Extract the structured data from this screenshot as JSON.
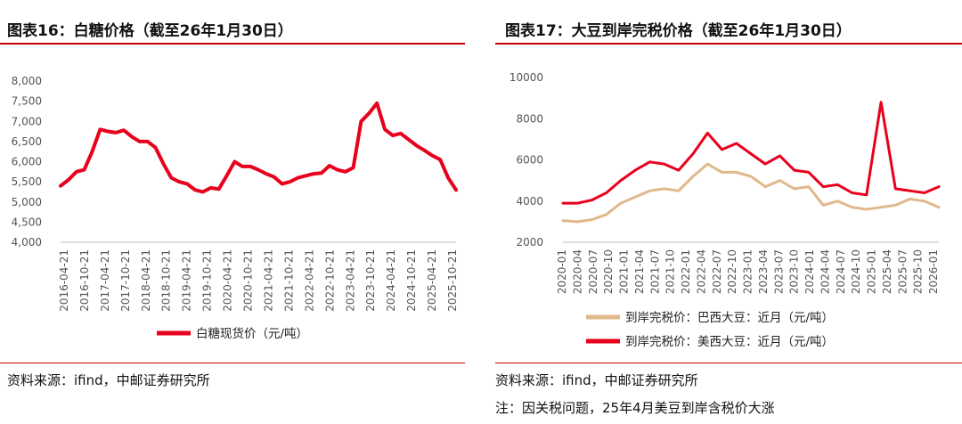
{
  "left": {
    "title": "图表16：白糖价格（截至26年1月30日）",
    "source": "资料来源：ifind，中邮证券研究所",
    "chart_data": {
      "type": "line",
      "title": "",
      "xlabel": "",
      "ylabel": "",
      "ylim": [
        4000,
        8000
      ],
      "yticks": [
        "8,000",
        "7,500",
        "7,000",
        "6,500",
        "6,000",
        "5,500",
        "5,000",
        "4,500",
        "4,000"
      ],
      "xticks": [
        "2016-04-21",
        "2016-10-21",
        "2017-04-21",
        "2017-10-21",
        "2018-04-21",
        "2018-10-21",
        "2019-04-21",
        "2019-10-21",
        "2020-04-21",
        "2020-10-21",
        "2021-04-21",
        "2021-10-21",
        "2022-04-21",
        "2022-10-21",
        "2023-04-21",
        "2023-10-21",
        "2024-04-21",
        "2024-10-21",
        "2025-04-21",
        "2025-10-21"
      ],
      "legend_position": "bottom",
      "grid": false,
      "series": [
        {
          "name": "白糖现货价（元/吨）",
          "color": "#e8001c",
          "x_start": "2016-01",
          "x_end": "2026-01",
          "values": [
            5400,
            5550,
            5750,
            5800,
            6250,
            6800,
            6750,
            6720,
            6780,
            6620,
            6500,
            6500,
            6350,
            5950,
            5600,
            5500,
            5450,
            5300,
            5250,
            5350,
            5320,
            5650,
            6000,
            5880,
            5880,
            5800,
            5700,
            5620,
            5450,
            5500,
            5600,
            5650,
            5700,
            5720,
            5900,
            5800,
            5750,
            5850,
            7000,
            7200,
            7450,
            6800,
            6650,
            6700,
            6550,
            6400,
            6280,
            6150,
            6050,
            5600,
            5300
          ]
        }
      ]
    }
  },
  "right": {
    "title": "图表17：大豆到岸完税价格（截至26年1月30日）",
    "source": "资料来源：ifind，中邮证券研究所",
    "note": "注：因关税问题，25年4月美豆到岸含税价大涨",
    "chart_data": {
      "type": "line",
      "title": "",
      "xlabel": "",
      "ylabel": "",
      "ylim": [
        2000,
        10000
      ],
      "yticks": [
        "10000",
        "8000",
        "6000",
        "4000",
        "2000"
      ],
      "xticks": [
        "2020-01",
        "2020-04",
        "2020-07",
        "2020-10",
        "2021-01",
        "2021-04",
        "2021-07",
        "2021-10",
        "2022-01",
        "2022-04",
        "2022-07",
        "2022-10",
        "2023-01",
        "2023-04",
        "2023-07",
        "2023-10",
        "2024-01",
        "2024-04",
        "2024-07",
        "2024-10",
        "2025-01",
        "2025-04",
        "2025-07",
        "2025-10",
        "2026-01"
      ],
      "legend_position": "bottom",
      "grid": false,
      "series": [
        {
          "name": "到岸完税价：巴西大豆：近月（元/吨）",
          "color": "#e0b88c",
          "values": [
            3050,
            3000,
            3100,
            3350,
            3900,
            4200,
            4500,
            4600,
            4500,
            5200,
            5800,
            5400,
            5400,
            5200,
            4700,
            5000,
            4600,
            4700,
            3800,
            4000,
            3700,
            3600,
            3700,
            3800,
            4100,
            4000,
            3700
          ]
        },
        {
          "name": "到岸完税价：美西大豆：近月（元/吨）",
          "color": "#e8001c",
          "values": [
            3900,
            3900,
            4050,
            4400,
            5000,
            5500,
            5900,
            5800,
            5500,
            6300,
            7300,
            6500,
            6800,
            6300,
            5800,
            6200,
            5500,
            5400,
            4700,
            4800,
            4400,
            4300,
            8800,
            4600,
            4500,
            4400,
            4700
          ]
        }
      ]
    }
  }
}
